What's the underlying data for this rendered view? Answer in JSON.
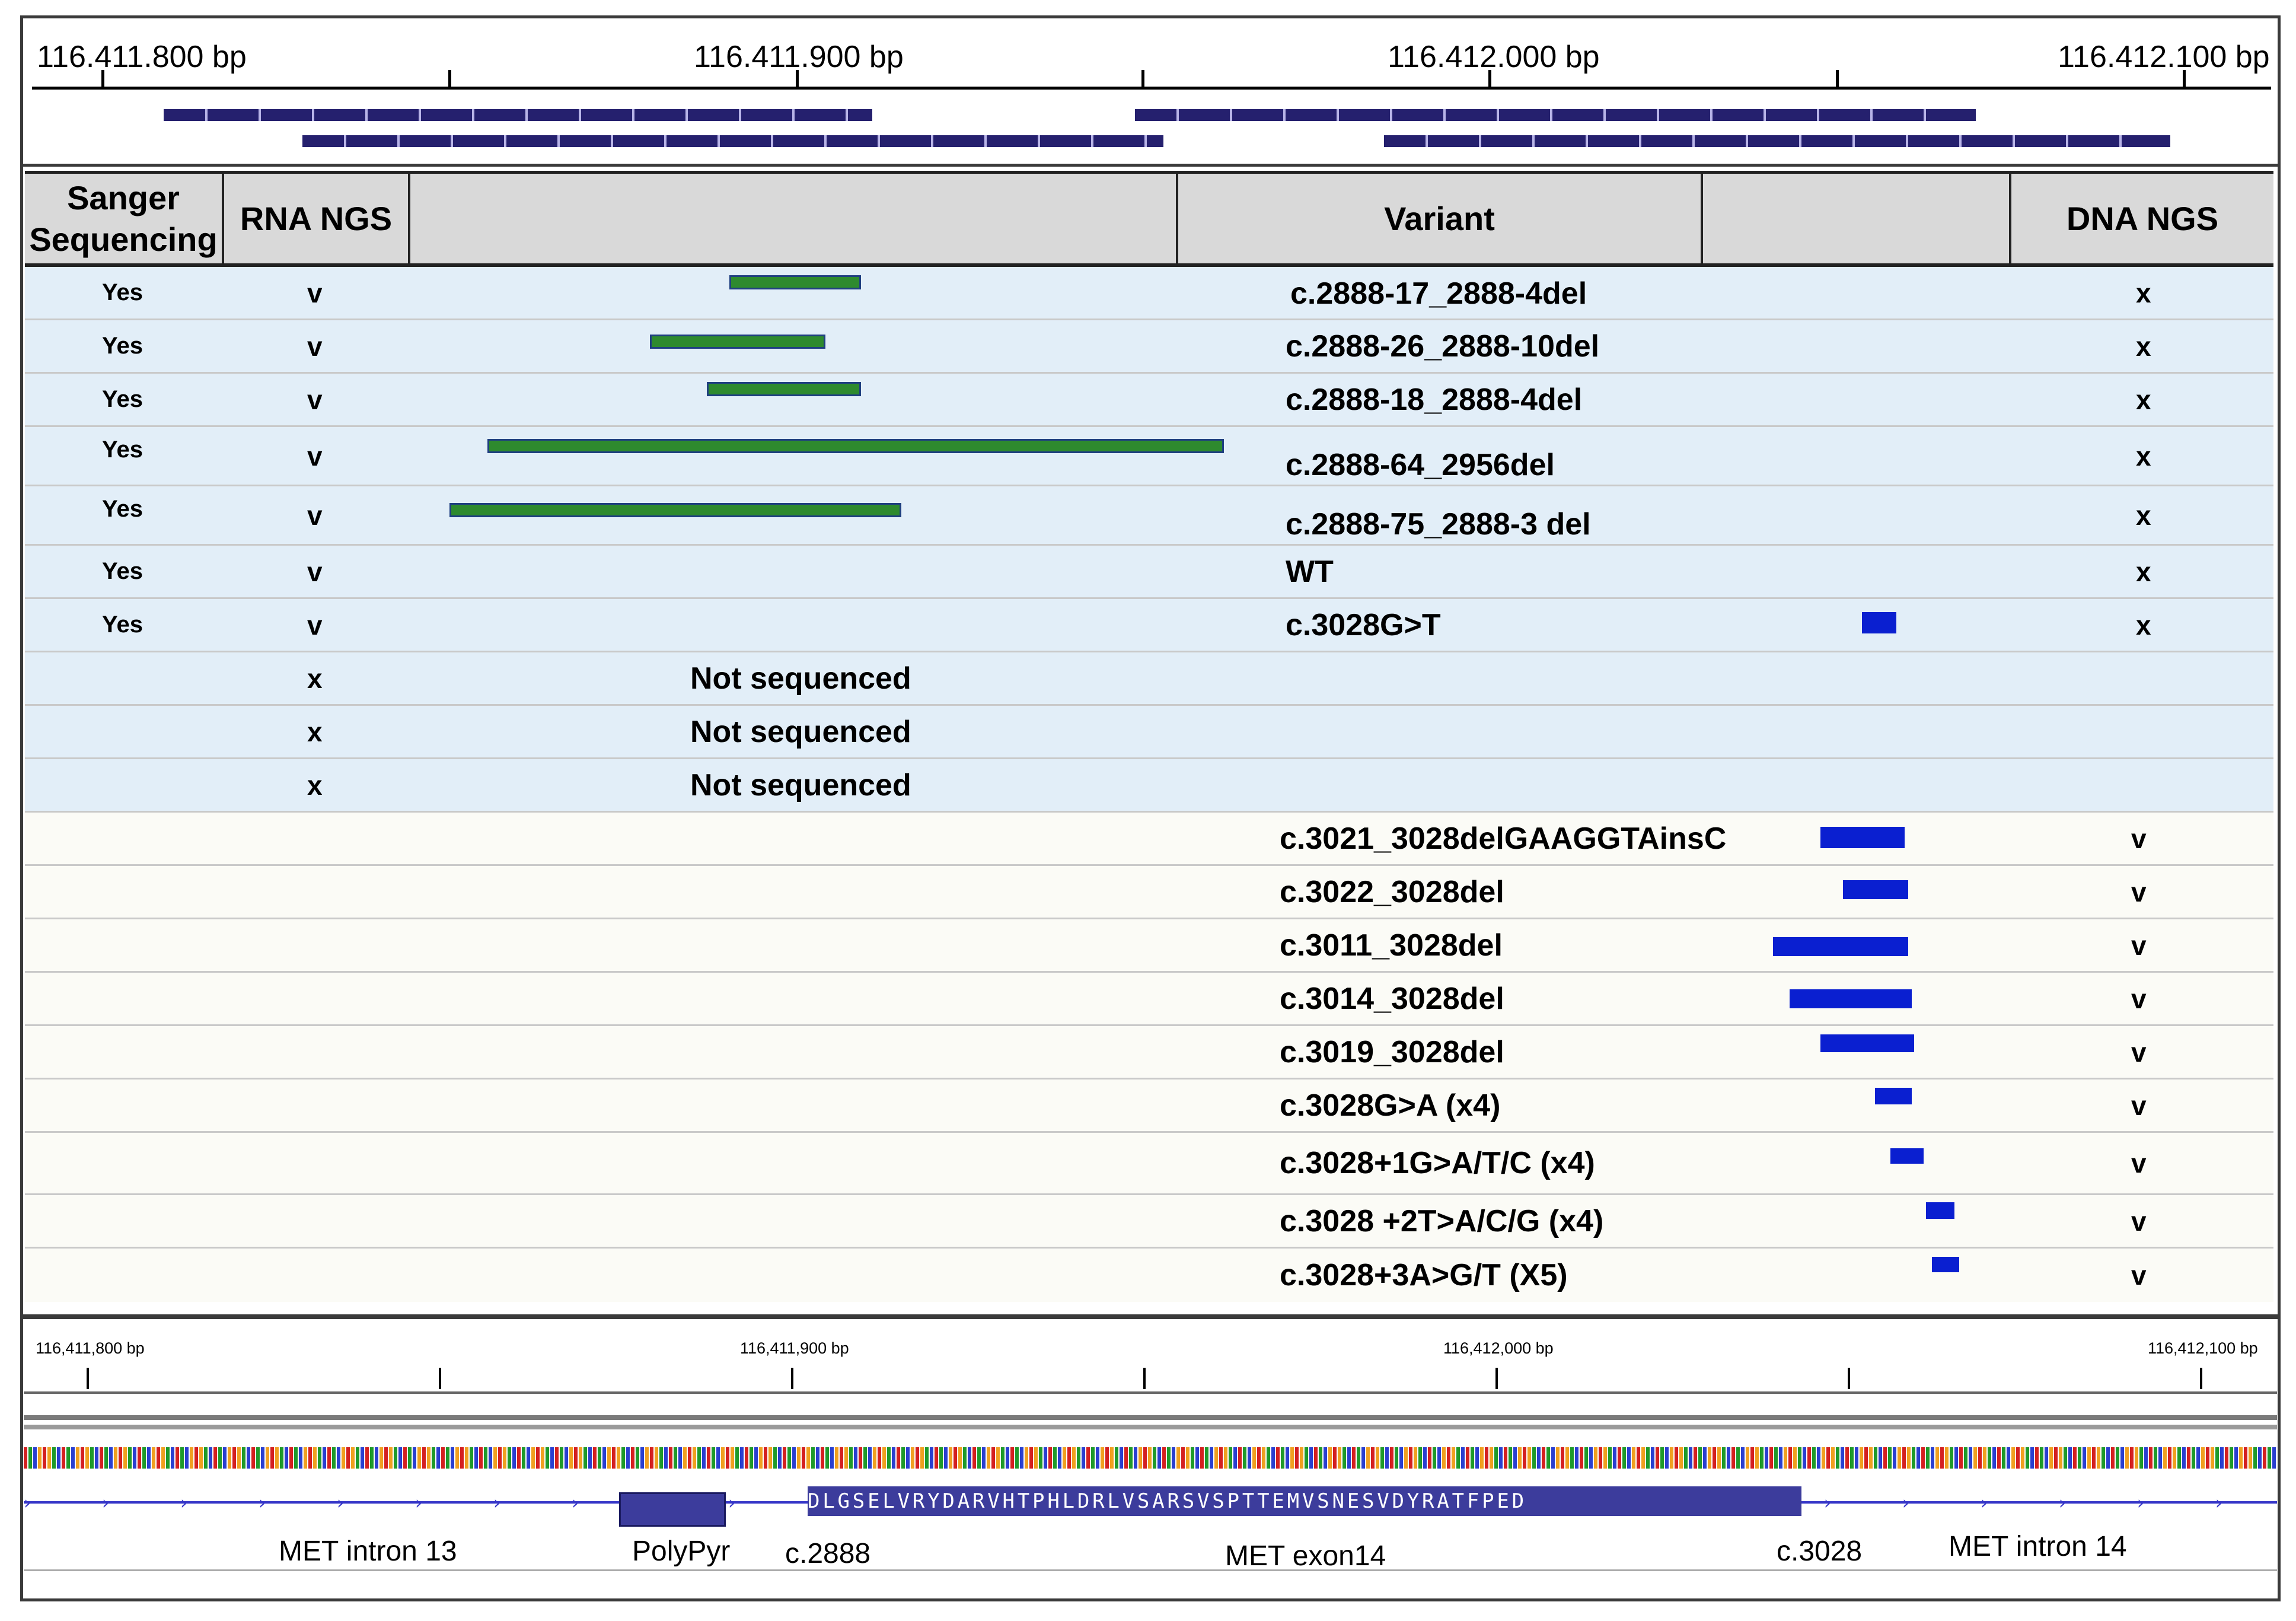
{
  "top_ruler": {
    "labels": [
      "116.411.800 bp",
      "116.411.900 bp",
      "116.412.000 bp",
      "116.412.100 bp"
    ]
  },
  "table": {
    "headers": {
      "sanger": "Sanger Sequencing",
      "rna_ngs": "RNA NGS",
      "blank1": "",
      "variant": "Variant",
      "blank2": "",
      "dna_ngs": "DNA NGS"
    },
    "rows": [
      {
        "sanger": "Yes",
        "rna": "v",
        "variant": "c.2888-17_2888-4del",
        "dna": "x"
      },
      {
        "sanger": "Yes",
        "rna": "v",
        "variant": "c.2888-26_2888-10del",
        "dna": "x"
      },
      {
        "sanger": "Yes",
        "rna": "v",
        "variant": "c.2888-18_2888-4del",
        "dna": "x"
      },
      {
        "sanger": "Yes",
        "rna": "v",
        "variant": "c.2888-64_2956del",
        "dna": "x"
      },
      {
        "sanger": "Yes",
        "rna": "v",
        "variant": "c.2888-75_2888-3  del",
        "dna": "x"
      },
      {
        "sanger": "Yes",
        "rna": "v",
        "variant": "WT",
        "dna": "x"
      },
      {
        "sanger": "Yes",
        "rna": "v",
        "variant": "c.3028G>T",
        "dna": "x"
      },
      {
        "sanger": "",
        "rna": "x",
        "not_sequenced": "Not sequenced"
      },
      {
        "sanger": "",
        "rna": "x",
        "not_sequenced": "Not sequenced"
      },
      {
        "sanger": "",
        "rna": "x",
        "not_sequenced": "Not sequenced"
      },
      {
        "variant": "c.3021_3028delGAAGGTAinsC",
        "dna": "v"
      },
      {
        "variant": "c.3022_3028del",
        "dna": "v"
      },
      {
        "variant": "c.3011_3028del",
        "dna": "v"
      },
      {
        "variant": "c.3014_3028del",
        "dna": "v"
      },
      {
        "variant": "c.3019_3028del",
        "dna": "v"
      },
      {
        "variant": "c.3028G>A (x4)",
        "dna": "v"
      },
      {
        "variant": "c.3028+1G>A/T/C (x4)",
        "dna": "v"
      },
      {
        "variant": "c.3028 +2T>A/C/G (x4)",
        "dna": "v"
      },
      {
        "variant": "c.3028+3A>G/T (X5)",
        "dna": "v"
      }
    ]
  },
  "bottom_track": {
    "ruler_labels": [
      "116,411,800 bp",
      "116,411,900 bp",
      "116,412,000 bp",
      "116,412,100 bp"
    ],
    "amino_acids": "DLGSELVRYDARVHTPHLDRLVSARSVSPTTEMVSNESVDYRATFPED",
    "annotations": {
      "intron13": "MET intron 13",
      "polypyr": "PolyPyr",
      "c2888": "c.2888",
      "exon14": "MET exon14",
      "c3028": "c.3028",
      "intron14": "MET intron 14"
    }
  },
  "colors": {
    "read": "#25206e",
    "deletion_rna": "#2e8a2e",
    "deletion_dna": "#0a1fd0",
    "rna_row_bg": "#e2eef8",
    "dna_row_bg": "#fbfbf6",
    "exon": "#3c3c9c"
  }
}
